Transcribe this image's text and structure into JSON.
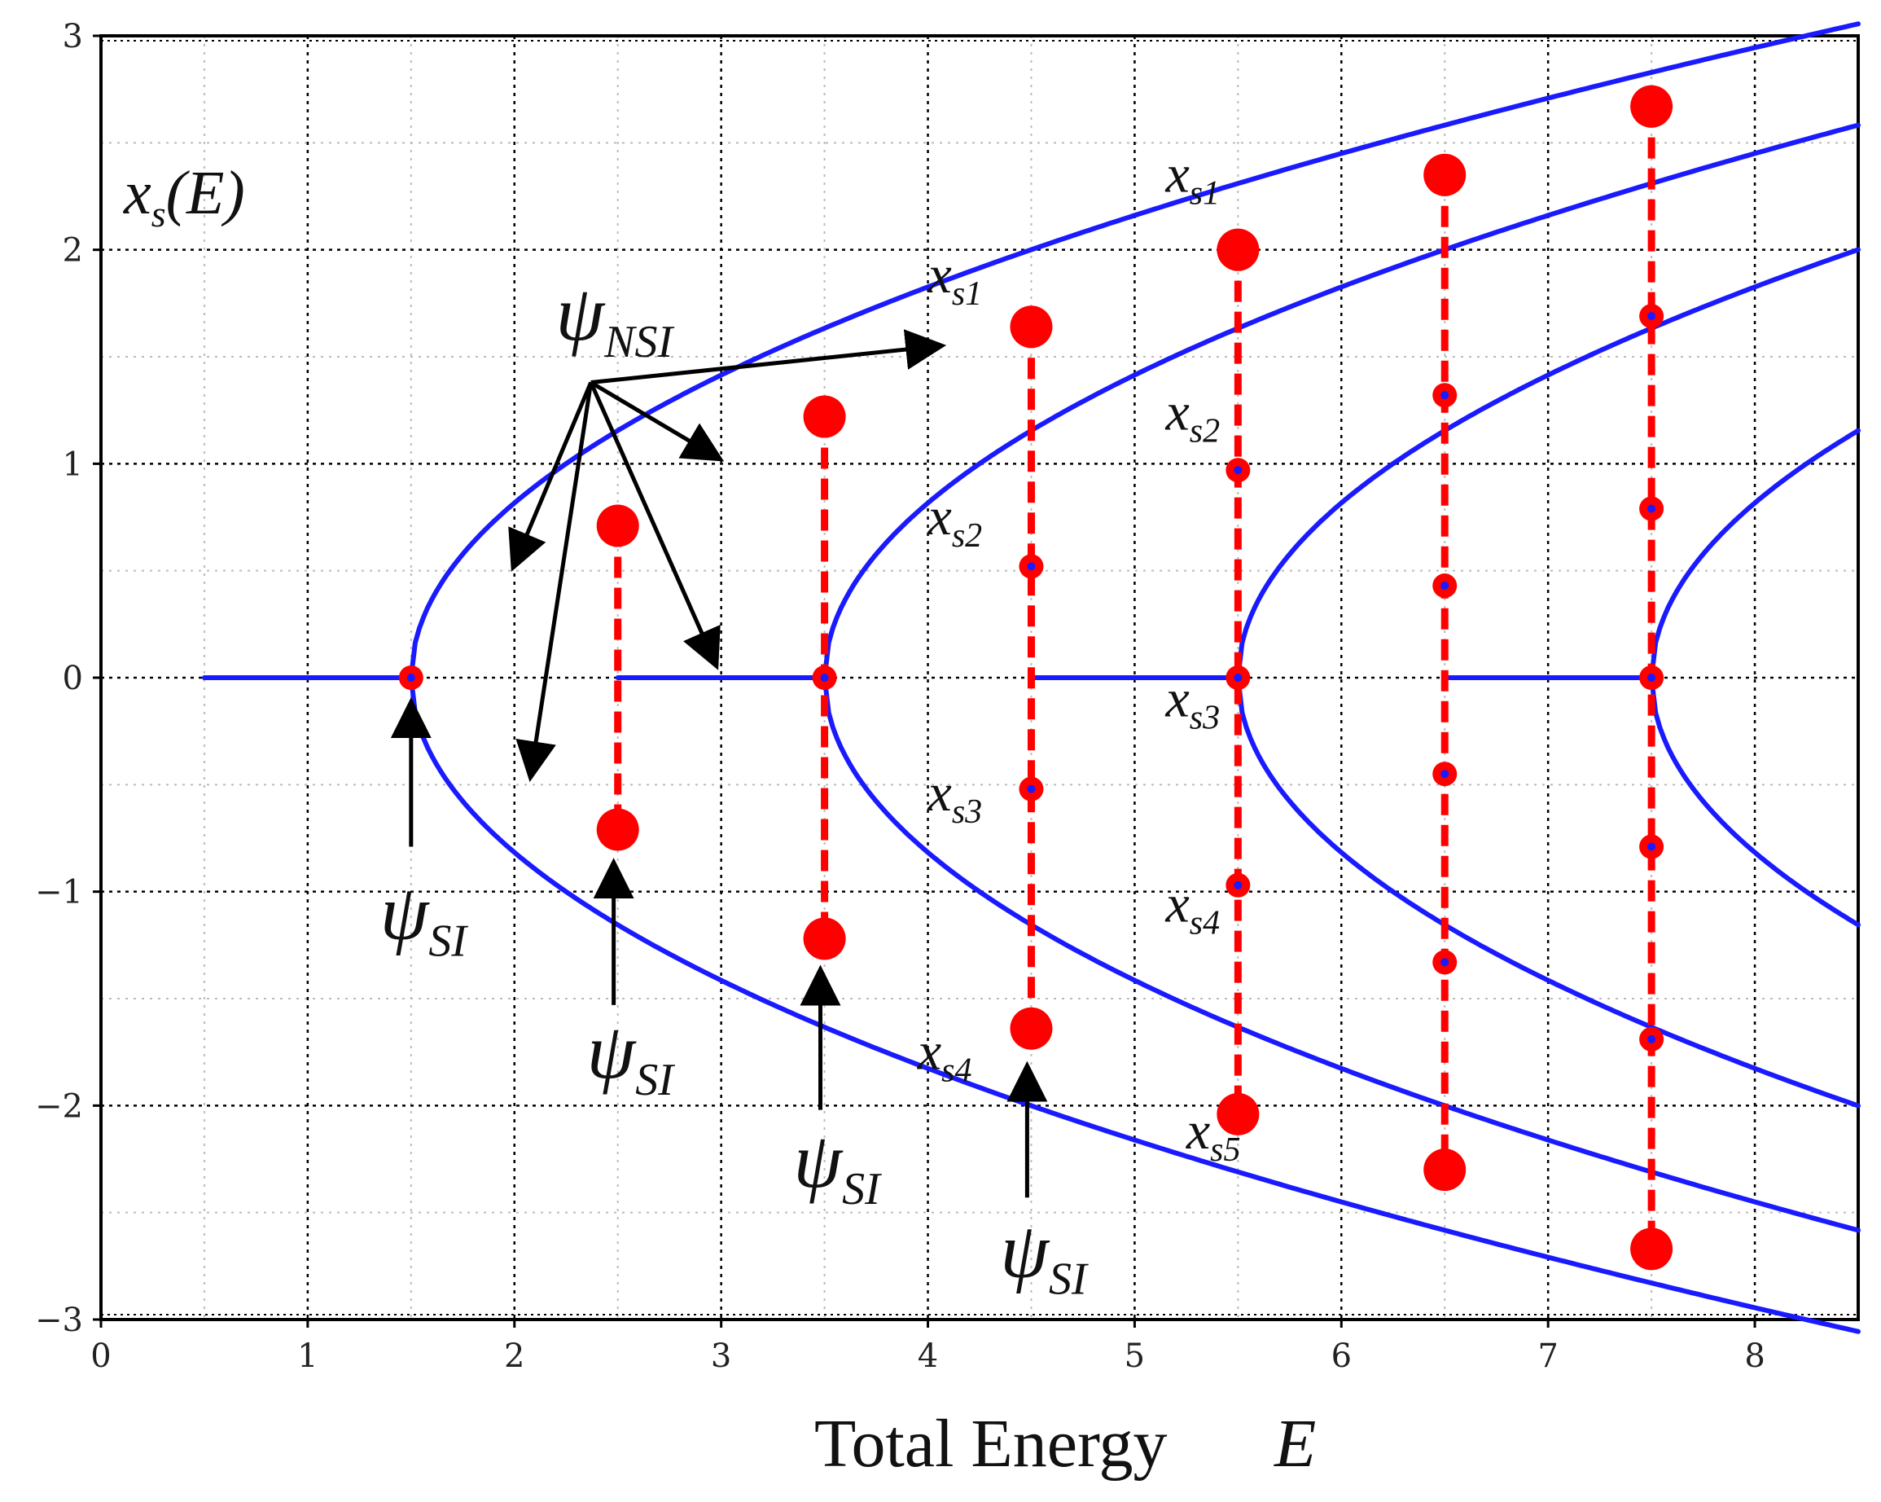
{
  "chart_data": {
    "type": "line",
    "title": "",
    "xlabel": "Total Energy",
    "xlabel_var": "E",
    "ylabel": "x_s(E)",
    "ylabel_parts": {
      "main": "x",
      "sub": "s",
      "rest": "(E)"
    },
    "xlim": [
      0,
      8.5
    ],
    "ylim": [
      -3,
      3
    ],
    "xticks": [
      0,
      1,
      2,
      3,
      4,
      5,
      6,
      7,
      8
    ],
    "yticks": [
      -3,
      -2,
      -1,
      0,
      1,
      2,
      3
    ],
    "grid": true,
    "colors": {
      "curve": "#1a1aff",
      "marker": "#ff0000",
      "marker_dot": "#1a1aff",
      "axis": "#000000",
      "grid": "#000000"
    },
    "branches": [
      {
        "name": "zero-branch-1",
        "x": [
          0.5,
          1.5
        ],
        "y": [
          0,
          0
        ]
      },
      {
        "name": "zero-branch-2",
        "x": [
          2.5,
          3.5
        ],
        "y": [
          0,
          0
        ]
      },
      {
        "name": "zero-branch-3",
        "x": [
          4.5,
          5.5
        ],
        "y": [
          0,
          0
        ]
      },
      {
        "name": "zero-branch-4",
        "x": [
          6.5,
          7.5
        ],
        "y": [
          0,
          0
        ]
      },
      {
        "name": "pitchfork-1",
        "origin": 1.5,
        "sign": 1
      },
      {
        "name": "pitchfork-1",
        "origin": 1.5,
        "sign": -1
      },
      {
        "name": "pitchfork-2",
        "origin": 3.5,
        "sign": 1
      },
      {
        "name": "pitchfork-2",
        "origin": 3.5,
        "sign": -1
      },
      {
        "name": "pitchfork-3",
        "origin": 5.5,
        "sign": 1
      },
      {
        "name": "pitchfork-3",
        "origin": 5.5,
        "sign": -1
      },
      {
        "name": "pitchfork-4",
        "origin": 7.5,
        "sign": 1
      },
      {
        "name": "pitchfork-4",
        "origin": 7.5,
        "sign": -1
      }
    ],
    "stationary_sets": [
      {
        "E": 1.5,
        "big": [],
        "small": [
          0
        ],
        "center_big": false
      },
      {
        "E": 2.5,
        "big": [
          0.71,
          -0.71
        ],
        "small": []
      },
      {
        "E": 3.5,
        "big": [
          1.22,
          -1.22
        ],
        "small": [
          0
        ]
      },
      {
        "E": 4.5,
        "big": [
          1.64,
          -1.64
        ],
        "small": [
          0.52,
          -0.52
        ]
      },
      {
        "E": 5.5,
        "big": [
          2.0,
          -2.04
        ],
        "small": [
          0.97,
          0,
          -0.97
        ]
      },
      {
        "E": 6.5,
        "big": [
          2.35,
          -2.3
        ],
        "small": [
          1.32,
          0.43,
          -0.45,
          -1.33
        ]
      },
      {
        "E": 7.5,
        "big": [
          2.67,
          -2.67
        ],
        "small": [
          1.69,
          0.79,
          0,
          -0.79,
          -1.69
        ]
      }
    ],
    "annotations": {
      "psi_NSI": {
        "text": "ψ",
        "sub": "NSI",
        "x": 2.2,
        "y": 1.58
      },
      "psi_SI": [
        {
          "text": "ψ",
          "sub": "SI",
          "x": 1.35,
          "y": -1.22
        },
        {
          "text": "ψ",
          "sub": "SI",
          "x": 2.35,
          "y": -1.87
        },
        {
          "text": "ψ",
          "sub": "SI",
          "x": 3.35,
          "y": -2.38
        },
        {
          "text": "ψ",
          "sub": "SI",
          "x": 4.35,
          "y": -2.8
        }
      ],
      "xs_labels": [
        {
          "main": "x",
          "sub": "s1",
          "x": 5.15,
          "y": 2.27
        },
        {
          "main": "x",
          "sub": "s2",
          "x": 5.15,
          "y": 1.16
        },
        {
          "main": "x",
          "sub": "s3",
          "x": 5.15,
          "y": -0.18
        },
        {
          "main": "x",
          "sub": "s4",
          "x": 5.15,
          "y": -1.14
        },
        {
          "main": "x",
          "sub": "s5",
          "x": 5.25,
          "y": -2.2
        },
        {
          "main": "x",
          "sub": "s1",
          "x": 4.0,
          "y": 1.8
        },
        {
          "main": "x",
          "sub": "s2",
          "x": 4.0,
          "y": 0.67
        },
        {
          "main": "x",
          "sub": "s3",
          "x": 4.0,
          "y": -0.62
        },
        {
          "main": "x",
          "sub": "s4",
          "x": 3.95,
          "y": -1.83
        }
      ]
    }
  }
}
